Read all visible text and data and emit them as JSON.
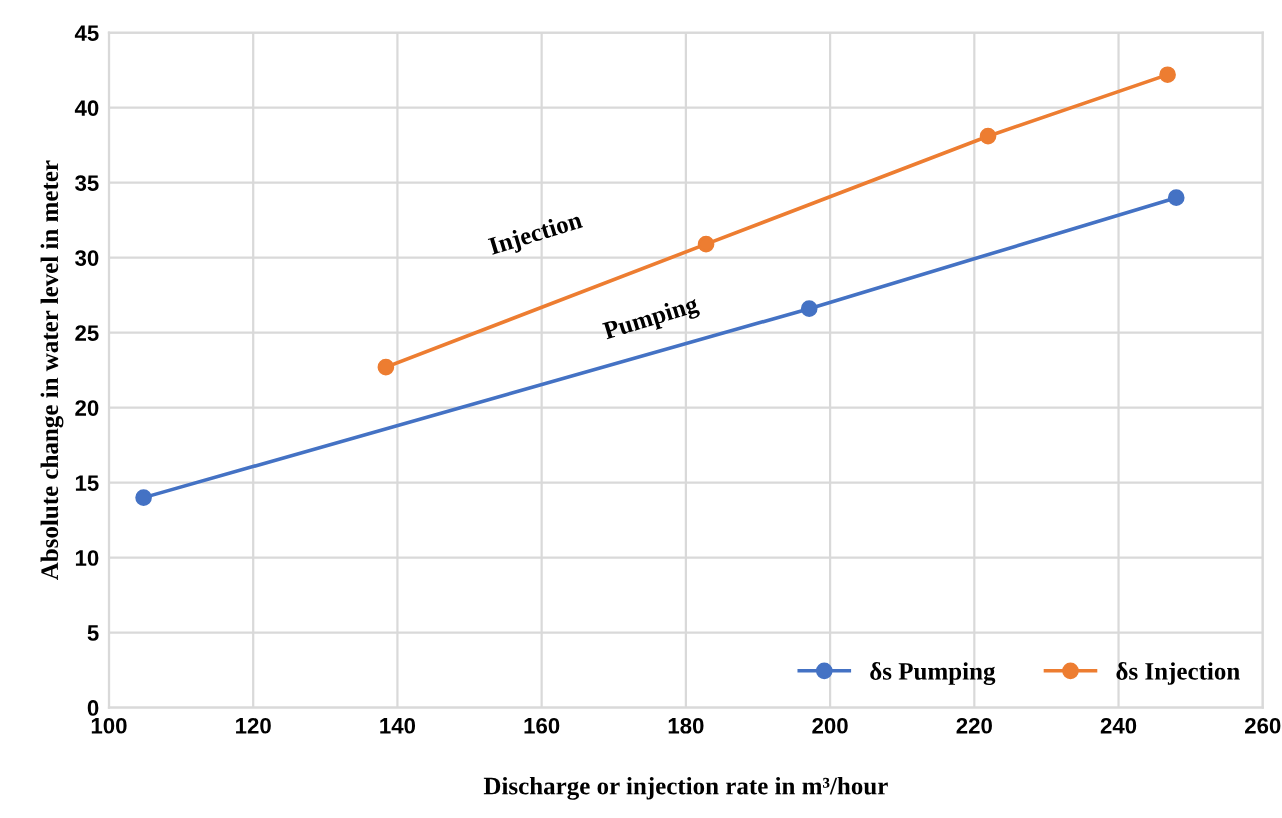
{
  "chart_data": {
    "type": "line",
    "xlabel": "Discharge or injection rate in m³/hour",
    "ylabel": "Absolute change in water level in meter",
    "series": [
      {
        "name": "δs Pumping",
        "color": "#4472c4",
        "x": [
          104.8,
          197.1,
          248
        ],
        "values": [
          14.0,
          26.6,
          34.0
        ]
      },
      {
        "name": "δs Injection",
        "color": "#ed7d31",
        "x": [
          138.4,
          182.8,
          221.9,
          246.8
        ],
        "values": [
          22.7,
          30.9,
          38.1,
          42.2
        ]
      }
    ],
    "annotations": [
      "Injection",
      "Pumping"
    ],
    "xlim": [
      100,
      260
    ],
    "xticks": [
      100,
      120,
      140,
      160,
      180,
      200,
      220,
      240,
      260
    ],
    "ylim": [
      0,
      45
    ],
    "yticks": [
      0,
      5,
      10,
      15,
      20,
      25,
      30,
      35,
      40,
      45
    ],
    "grid": true,
    "legend": "bottom right",
    "marker": "circle",
    "line_style": "solid"
  }
}
